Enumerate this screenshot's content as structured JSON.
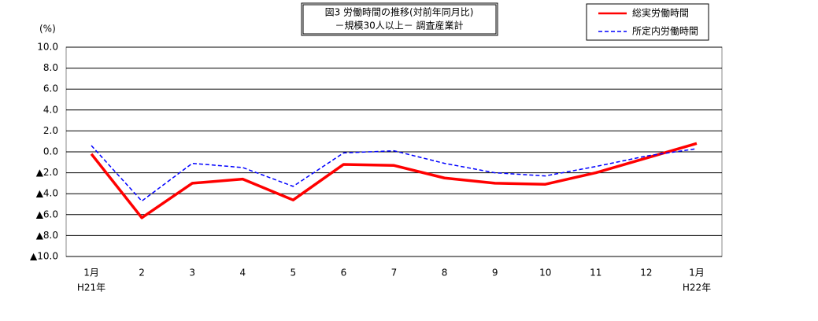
{
  "chart_data": {
    "type": "line",
    "title": "図3 労働時間の推移(対前年同月比)",
    "subtitle": "－規模30人以上－ 調査産業計",
    "y_label": "(%)",
    "categories": [
      "1月",
      "2",
      "3",
      "4",
      "5",
      "6",
      "7",
      "8",
      "9",
      "10",
      "11",
      "12",
      "1月"
    ],
    "category_sublabels": [
      "H21年",
      null,
      null,
      null,
      null,
      null,
      null,
      null,
      null,
      null,
      null,
      null,
      "H22年"
    ],
    "series": [
      {
        "name": "総実労働時間",
        "color": "#ff0000",
        "style": "solid",
        "values": [
          -0.2,
          -6.3,
          -3.0,
          -2.6,
          -4.6,
          -1.2,
          -1.3,
          -2.5,
          -3.0,
          -3.1,
          -2.0,
          -0.6,
          0.8
        ]
      },
      {
        "name": "所定内労働時間",
        "color": "#0000ff",
        "style": "dashed",
        "values": [
          0.6,
          -4.7,
          -1.1,
          -1.5,
          -3.3,
          -0.1,
          0.1,
          -1.1,
          -2.0,
          -2.3,
          -1.4,
          -0.4,
          0.3
        ]
      }
    ],
    "ylim": [
      -10,
      10
    ],
    "yticks": [
      {
        "value": 10,
        "label": "10.0"
      },
      {
        "value": 8,
        "label": "8.0"
      },
      {
        "value": 6,
        "label": "6.0"
      },
      {
        "value": 4,
        "label": "4.0"
      },
      {
        "value": 2,
        "label": "2.0"
      },
      {
        "value": 0,
        "label": "0.0"
      },
      {
        "value": -2,
        "label": "▲2.0"
      },
      {
        "value": -4,
        "label": "▲4.0"
      },
      {
        "value": -6,
        "label": "▲6.0"
      },
      {
        "value": -8,
        "label": "▲8.0"
      },
      {
        "value": -10,
        "label": "▲10.0"
      }
    ],
    "grid": true,
    "legend": "top-right"
  }
}
